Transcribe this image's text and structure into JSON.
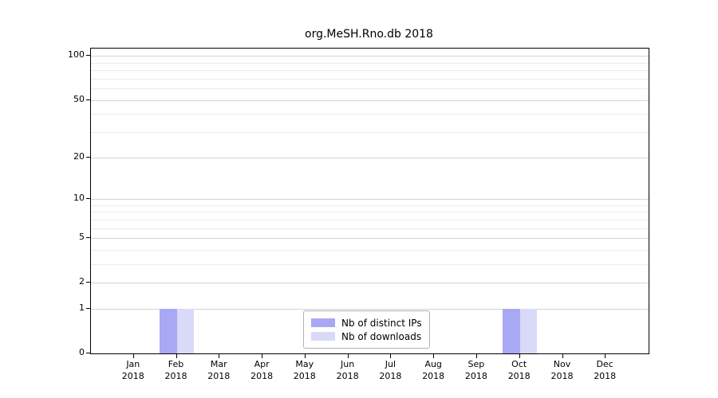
{
  "chart_data": {
    "type": "bar",
    "title": "org.MeSH.Rno.db 2018",
    "categories": [
      {
        "month": "Jan",
        "year": "2018"
      },
      {
        "month": "Feb",
        "year": "2018"
      },
      {
        "month": "Mar",
        "year": "2018"
      },
      {
        "month": "Apr",
        "year": "2018"
      },
      {
        "month": "May",
        "year": "2018"
      },
      {
        "month": "Jun",
        "year": "2018"
      },
      {
        "month": "Jul",
        "year": "2018"
      },
      {
        "month": "Aug",
        "year": "2018"
      },
      {
        "month": "Sep",
        "year": "2018"
      },
      {
        "month": "Oct",
        "year": "2018"
      },
      {
        "month": "Nov",
        "year": "2018"
      },
      {
        "month": "Dec",
        "year": "2018"
      }
    ],
    "series": [
      {
        "name": "Nb of distinct IPs",
        "color": "#a8a8f4",
        "values": [
          0,
          1,
          0,
          0,
          0,
          0,
          0,
          0,
          0,
          1,
          0,
          0
        ]
      },
      {
        "name": "Nb of downloads",
        "color": "#d9d9f8",
        "values": [
          0,
          1,
          0,
          0,
          0,
          0,
          0,
          0,
          0,
          1,
          0,
          0
        ]
      }
    ],
    "xlabel": "",
    "ylabel": "",
    "yscale": "log1p",
    "ylim": [
      0,
      112.5
    ],
    "y_major_ticks": [
      0,
      1,
      2,
      5,
      10,
      20,
      50,
      100
    ],
    "y_minor_gridlines": [
      3,
      4,
      6,
      7,
      8,
      9,
      30,
      40,
      60,
      70,
      80,
      90
    ],
    "grid": true,
    "legend_position": "lower center"
  },
  "colors": {
    "major_grid": "#d3d3d3",
    "minor_grid": "#ececec",
    "axis": "#000000",
    "legend_border": "#b3b3b3",
    "background": "#ffffff"
  }
}
